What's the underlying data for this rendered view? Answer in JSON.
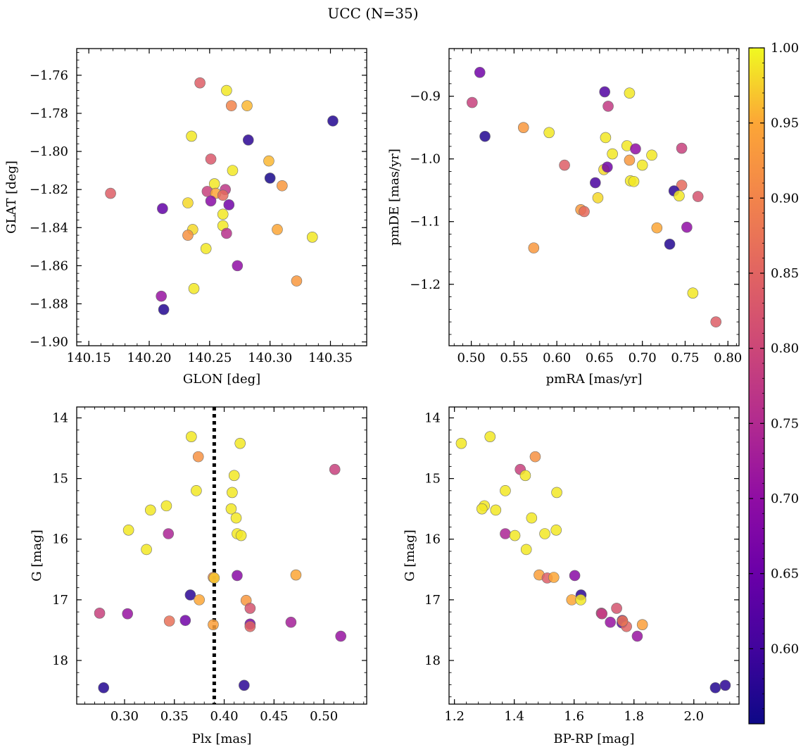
{
  "figure": {
    "title": "UCC (N=35)"
  },
  "colorbar": {
    "colormap": "plasma",
    "range": [
      0.55,
      1.0
    ],
    "ticks": [
      0.6,
      0.65,
      0.7,
      0.75,
      0.8,
      0.85,
      0.9,
      0.95,
      1.0
    ],
    "tick_labels": [
      "0.60",
      "0.65",
      "0.70",
      "0.75",
      "0.80",
      "0.85",
      "0.90",
      "0.95",
      "1.00"
    ]
  },
  "chart_data": [
    {
      "type": "scatter",
      "xlabel": "GLON [deg]",
      "ylabel": "GLAT [deg]",
      "xlim": [
        140.14,
        140.38
      ],
      "ylim": [
        -1.902,
        -1.746
      ],
      "invert_y": false,
      "xticks": [
        140.15,
        140.2,
        140.25,
        140.3,
        140.35
      ],
      "xtick_labels": [
        "140.15",
        "140.20",
        "140.25",
        "140.30",
        "140.35"
      ],
      "yticks": [
        -1.9,
        -1.88,
        -1.86,
        -1.84,
        -1.82,
        -1.8,
        -1.78,
        -1.76
      ],
      "ytick_labels": [
        "−1.90",
        "−1.88",
        "−1.86",
        "−1.84",
        "−1.82",
        "−1.80",
        "−1.78",
        "−1.76"
      ],
      "points": [
        {
          "x": 140.242,
          "y": -1.764,
          "c": 0.84
        },
        {
          "x": 140.264,
          "y": -1.768,
          "c": 0.99
        },
        {
          "x": 140.268,
          "y": -1.776,
          "c": 0.9
        },
        {
          "x": 140.281,
          "y": -1.776,
          "c": 0.96
        },
        {
          "x": 140.352,
          "y": -1.784,
          "c": 0.57
        },
        {
          "x": 140.235,
          "y": -1.792,
          "c": 0.99
        },
        {
          "x": 140.282,
          "y": -1.794,
          "c": 0.58
        },
        {
          "x": 140.251,
          "y": -1.804,
          "c": 0.83
        },
        {
          "x": 140.299,
          "y": -1.805,
          "c": 0.96
        },
        {
          "x": 140.269,
          "y": -1.81,
          "c": 0.99
        },
        {
          "x": 140.3,
          "y": -1.814,
          "c": 0.56
        },
        {
          "x": 140.31,
          "y": -1.818,
          "c": 0.93
        },
        {
          "x": 140.254,
          "y": -1.817,
          "c": 0.99
        },
        {
          "x": 140.168,
          "y": -1.822,
          "c": 0.84
        },
        {
          "x": 140.248,
          "y": -1.821,
          "c": 0.79
        },
        {
          "x": 140.255,
          "y": -1.822,
          "c": 0.95
        },
        {
          "x": 140.263,
          "y": -1.82,
          "c": 0.77
        },
        {
          "x": 140.261,
          "y": -1.823,
          "c": 0.86
        },
        {
          "x": 140.211,
          "y": -1.83,
          "c": 0.64
        },
        {
          "x": 140.232,
          "y": -1.827,
          "c": 0.98
        },
        {
          "x": 140.251,
          "y": -1.826,
          "c": 0.69
        },
        {
          "x": 140.266,
          "y": -1.828,
          "c": 0.66
        },
        {
          "x": 140.261,
          "y": -1.833,
          "c": 0.99
        },
        {
          "x": 140.261,
          "y": -1.839,
          "c": 0.99
        },
        {
          "x": 140.236,
          "y": -1.841,
          "c": 0.98
        },
        {
          "x": 140.232,
          "y": -1.844,
          "c": 0.92
        },
        {
          "x": 140.264,
          "y": -1.843,
          "c": 0.76
        },
        {
          "x": 140.306,
          "y": -1.841,
          "c": 0.95
        },
        {
          "x": 140.335,
          "y": -1.845,
          "c": 0.99
        },
        {
          "x": 140.247,
          "y": -1.851,
          "c": 0.99
        },
        {
          "x": 140.273,
          "y": -1.86,
          "c": 0.7
        },
        {
          "x": 140.322,
          "y": -1.868,
          "c": 0.93
        },
        {
          "x": 140.237,
          "y": -1.872,
          "c": 0.99
        },
        {
          "x": 140.21,
          "y": -1.876,
          "c": 0.71
        },
        {
          "x": 140.212,
          "y": -1.883,
          "c": 0.57
        }
      ]
    },
    {
      "type": "scatter",
      "xlabel": "pmRA [mas/yr]",
      "ylabel": "pmDE [mas/yr]",
      "xlim": [
        0.474,
        0.813
      ],
      "ylim": [
        -1.298,
        -0.824
      ],
      "invert_y": false,
      "xticks": [
        0.5,
        0.55,
        0.6,
        0.65,
        0.7,
        0.75,
        0.8
      ],
      "xtick_labels": [
        "0.50",
        "0.55",
        "0.60",
        "0.65",
        "0.70",
        "0.75",
        "0.80"
      ],
      "yticks": [
        -1.2,
        -1.1,
        -1.0,
        -0.9
      ],
      "ytick_labels": [
        "−1.2",
        "−1.1",
        "−1.0",
        "−0.9"
      ],
      "points": [
        {
          "x": 0.51,
          "y": -0.862,
          "c": 0.66
        },
        {
          "x": 0.501,
          "y": -0.91,
          "c": 0.79
        },
        {
          "x": 0.516,
          "y": -0.964,
          "c": 0.57
        },
        {
          "x": 0.656,
          "y": -0.893,
          "c": 0.62
        },
        {
          "x": 0.685,
          "y": -0.895,
          "c": 0.99
        },
        {
          "x": 0.66,
          "y": -0.916,
          "c": 0.78
        },
        {
          "x": 0.561,
          "y": -0.95,
          "c": 0.93
        },
        {
          "x": 0.591,
          "y": -0.958,
          "c": 0.99
        },
        {
          "x": 0.657,
          "y": -0.966,
          "c": 0.99
        },
        {
          "x": 0.682,
          "y": -0.979,
          "c": 0.99
        },
        {
          "x": 0.692,
          "y": -0.984,
          "c": 0.7
        },
        {
          "x": 0.746,
          "y": -0.983,
          "c": 0.79
        },
        {
          "x": 0.665,
          "y": -0.992,
          "c": 0.99
        },
        {
          "x": 0.711,
          "y": -0.994,
          "c": 0.99
        },
        {
          "x": 0.685,
          "y": -1.002,
          "c": 0.93
        },
        {
          "x": 0.609,
          "y": -1.01,
          "c": 0.84
        },
        {
          "x": 0.7,
          "y": -1.01,
          "c": 0.99
        },
        {
          "x": 0.655,
          "y": -1.017,
          "c": 0.98
        },
        {
          "x": 0.659,
          "y": -1.013,
          "c": 0.66
        },
        {
          "x": 0.645,
          "y": -1.038,
          "c": 0.61
        },
        {
          "x": 0.686,
          "y": -1.035,
          "c": 0.99
        },
        {
          "x": 0.69,
          "y": -1.036,
          "c": 0.99
        },
        {
          "x": 0.746,
          "y": -1.042,
          "c": 0.86
        },
        {
          "x": 0.737,
          "y": -1.051,
          "c": 0.58
        },
        {
          "x": 0.743,
          "y": -1.059,
          "c": 0.99
        },
        {
          "x": 0.765,
          "y": -1.06,
          "c": 0.82
        },
        {
          "x": 0.648,
          "y": -1.062,
          "c": 0.98
        },
        {
          "x": 0.628,
          "y": -1.081,
          "c": 0.93
        },
        {
          "x": 0.632,
          "y": -1.084,
          "c": 0.86
        },
        {
          "x": 0.717,
          "y": -1.11,
          "c": 0.95
        },
        {
          "x": 0.752,
          "y": -1.109,
          "c": 0.7
        },
        {
          "x": 0.732,
          "y": -1.136,
          "c": 0.57
        },
        {
          "x": 0.573,
          "y": -1.142,
          "c": 0.93
        },
        {
          "x": 0.759,
          "y": -1.214,
          "c": 0.99
        },
        {
          "x": 0.786,
          "y": -1.26,
          "c": 0.84
        }
      ]
    },
    {
      "type": "scatter",
      "xlabel": "Plx [mas]",
      "ylabel": "G [mag]",
      "xlim": [
        0.252,
        0.543
      ],
      "ylim": [
        18.72,
        13.82
      ],
      "invert_y": true,
      "vline": 0.39,
      "xticks": [
        0.3,
        0.35,
        0.4,
        0.45,
        0.5
      ],
      "xtick_labels": [
        "0.30",
        "0.35",
        "0.40",
        "0.45",
        "0.50"
      ],
      "yticks": [
        14,
        15,
        16,
        17,
        18
      ],
      "ytick_labels": [
        "14",
        "15",
        "16",
        "17",
        "18"
      ],
      "points": [
        {
          "x": 0.367,
          "y": 14.31,
          "c": 0.99
        },
        {
          "x": 0.416,
          "y": 14.42,
          "c": 0.99
        },
        {
          "x": 0.374,
          "y": 14.64,
          "c": 0.92
        },
        {
          "x": 0.511,
          "y": 14.85,
          "c": 0.79
        },
        {
          "x": 0.41,
          "y": 14.95,
          "c": 0.99
        },
        {
          "x": 0.372,
          "y": 15.2,
          "c": 0.99
        },
        {
          "x": 0.408,
          "y": 15.23,
          "c": 0.99
        },
        {
          "x": 0.326,
          "y": 15.52,
          "c": 0.99
        },
        {
          "x": 0.342,
          "y": 15.45,
          "c": 0.99
        },
        {
          "x": 0.407,
          "y": 15.5,
          "c": 0.99
        },
        {
          "x": 0.412,
          "y": 15.65,
          "c": 0.99
        },
        {
          "x": 0.304,
          "y": 15.85,
          "c": 0.99
        },
        {
          "x": 0.344,
          "y": 15.91,
          "c": 0.74
        },
        {
          "x": 0.413,
          "y": 15.91,
          "c": 0.99
        },
        {
          "x": 0.417,
          "y": 15.94,
          "c": 0.99
        },
        {
          "x": 0.322,
          "y": 16.17,
          "c": 0.99
        },
        {
          "x": 0.413,
          "y": 16.6,
          "c": 0.69
        },
        {
          "x": 0.472,
          "y": 16.59,
          "c": 0.95
        },
        {
          "x": 0.389,
          "y": 16.63,
          "c": 0.91
        },
        {
          "x": 0.39,
          "y": 16.64,
          "c": 0.97
        },
        {
          "x": 0.366,
          "y": 16.92,
          "c": 0.58
        },
        {
          "x": 0.375,
          "y": 17.0,
          "c": 0.95
        },
        {
          "x": 0.422,
          "y": 17.01,
          "c": 0.93
        },
        {
          "x": 0.426,
          "y": 17.14,
          "c": 0.82
        },
        {
          "x": 0.275,
          "y": 17.22,
          "c": 0.79
        },
        {
          "x": 0.303,
          "y": 17.23,
          "c": 0.71
        },
        {
          "x": 0.345,
          "y": 17.35,
          "c": 0.87
        },
        {
          "x": 0.361,
          "y": 17.34,
          "c": 0.66
        },
        {
          "x": 0.467,
          "y": 17.37,
          "c": 0.73
        },
        {
          "x": 0.426,
          "y": 17.4,
          "c": 0.67
        },
        {
          "x": 0.389,
          "y": 17.41,
          "c": 0.94
        },
        {
          "x": 0.426,
          "y": 17.44,
          "c": 0.85
        },
        {
          "x": 0.517,
          "y": 17.6,
          "c": 0.71
        },
        {
          "x": 0.279,
          "y": 18.45,
          "c": 0.57
        },
        {
          "x": 0.42,
          "y": 18.41,
          "c": 0.58
        }
      ]
    },
    {
      "type": "scatter",
      "xlabel": "BP-RP [mag]",
      "ylabel": "G [mag]",
      "xlim": [
        1.182,
        2.151
      ],
      "ylim": [
        18.72,
        13.82
      ],
      "invert_y": true,
      "xticks": [
        1.2,
        1.4,
        1.6,
        1.8,
        2.0
      ],
      "xtick_labels": [
        "1.2",
        "1.4",
        "1.6",
        "1.8",
        "2.0"
      ],
      "yticks": [
        14,
        15,
        16,
        17,
        18
      ],
      "ytick_labels": [
        "14",
        "15",
        "16",
        "17",
        "18"
      ],
      "points": [
        {
          "x": 1.223,
          "y": 14.42,
          "c": 0.99
        },
        {
          "x": 1.319,
          "y": 14.31,
          "c": 0.99
        },
        {
          "x": 1.47,
          "y": 14.64,
          "c": 0.92
        },
        {
          "x": 1.42,
          "y": 14.85,
          "c": 0.79
        },
        {
          "x": 1.437,
          "y": 14.95,
          "c": 0.99
        },
        {
          "x": 1.542,
          "y": 15.23,
          "c": 0.99
        },
        {
          "x": 1.37,
          "y": 15.2,
          "c": 0.99
        },
        {
          "x": 1.3,
          "y": 15.45,
          "c": 0.99
        },
        {
          "x": 1.292,
          "y": 15.5,
          "c": 0.99
        },
        {
          "x": 1.338,
          "y": 15.52,
          "c": 0.99
        },
        {
          "x": 1.458,
          "y": 15.65,
          "c": 0.99
        },
        {
          "x": 1.37,
          "y": 15.91,
          "c": 0.74
        },
        {
          "x": 1.402,
          "y": 15.94,
          "c": 0.99
        },
        {
          "x": 1.502,
          "y": 15.91,
          "c": 0.99
        },
        {
          "x": 1.54,
          "y": 15.85,
          "c": 0.99
        },
        {
          "x": 1.44,
          "y": 16.17,
          "c": 0.99
        },
        {
          "x": 1.483,
          "y": 16.59,
          "c": 0.94
        },
        {
          "x": 1.51,
          "y": 16.64,
          "c": 0.84
        },
        {
          "x": 1.532,
          "y": 16.63,
          "c": 0.95
        },
        {
          "x": 1.602,
          "y": 16.6,
          "c": 0.69
        },
        {
          "x": 1.623,
          "y": 16.92,
          "c": 0.58
        },
        {
          "x": 1.592,
          "y": 17.0,
          "c": 0.95
        },
        {
          "x": 1.622,
          "y": 17.0,
          "c": 0.99
        },
        {
          "x": 1.742,
          "y": 17.14,
          "c": 0.82
        },
        {
          "x": 1.691,
          "y": 17.22,
          "c": 0.79
        },
        {
          "x": 1.693,
          "y": 17.23,
          "c": 0.78
        },
        {
          "x": 1.721,
          "y": 17.37,
          "c": 0.71
        },
        {
          "x": 1.761,
          "y": 17.34,
          "c": 0.66
        },
        {
          "x": 1.76,
          "y": 17.38,
          "c": 0.63
        },
        {
          "x": 1.775,
          "y": 17.44,
          "c": 0.85
        },
        {
          "x": 1.828,
          "y": 17.41,
          "c": 0.94
        },
        {
          "x": 1.811,
          "y": 17.6,
          "c": 0.71
        },
        {
          "x": 2.072,
          "y": 18.45,
          "c": 0.57
        },
        {
          "x": 2.105,
          "y": 18.41,
          "c": 0.58
        },
        {
          "x": 1.762,
          "y": 17.35,
          "c": 0.88
        }
      ]
    }
  ]
}
